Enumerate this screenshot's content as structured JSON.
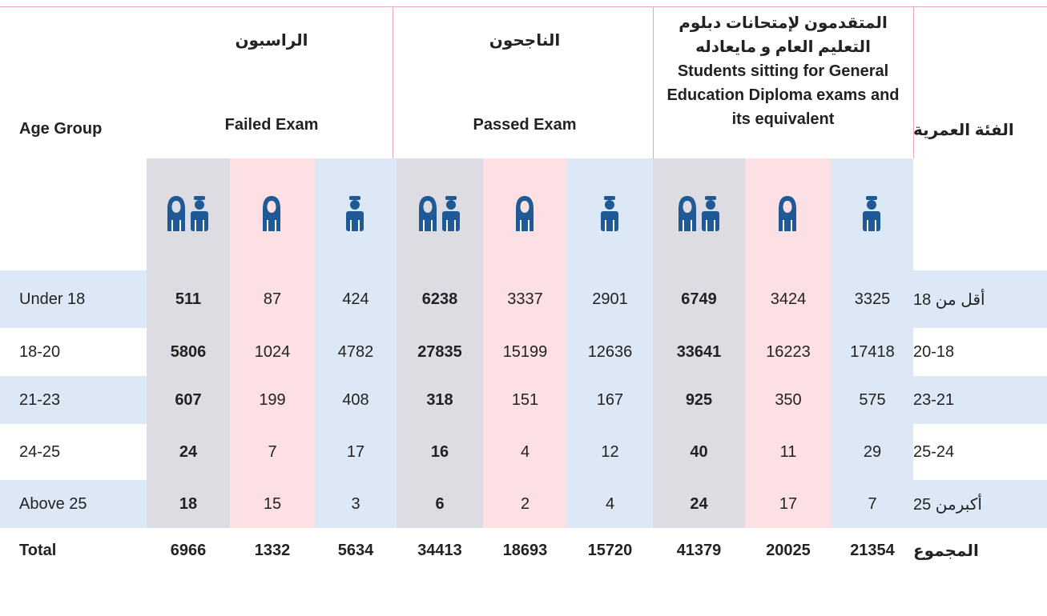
{
  "header": {
    "age_group_en": "Age Group",
    "age_group_ar": "الفئة العمرية",
    "groups": [
      {
        "ar": "الراسبون",
        "en": "Failed Exam"
      },
      {
        "ar": "الناجحون",
        "en": "Passed Exam"
      },
      {
        "ar": "المتقدمون لإمتحانات دبلوم التعليم العام و مايعادله",
        "en": "Students sitting for General Education Diploma exams and its equivalent"
      }
    ]
  },
  "rows": [
    {
      "en": "Under 18",
      "values": [
        511,
        87,
        424,
        6238,
        3337,
        2901,
        6749,
        3424,
        3325
      ],
      "ar": "أقل من 18"
    },
    {
      "en": "18-20",
      "values": [
        5806,
        1024,
        4782,
        27835,
        15199,
        12636,
        33641,
        16223,
        17418
      ],
      "ar": "20-18"
    },
    {
      "en": "21-23",
      "values": [
        607,
        199,
        408,
        318,
        151,
        167,
        925,
        350,
        575
      ],
      "ar": "23-21"
    },
    {
      "en": "24-25",
      "values": [
        24,
        7,
        17,
        16,
        4,
        12,
        40,
        11,
        29
      ],
      "ar": "25-24"
    },
    {
      "en": "Above 25",
      "values": [
        18,
        15,
        3,
        6,
        2,
        4,
        24,
        17,
        7
      ],
      "ar": "أكبرمن 25"
    }
  ],
  "total": {
    "en": "Total",
    "values": [
      6966,
      1332,
      5634,
      34413,
      18693,
      15720,
      41379,
      20025,
      21354
    ],
    "ar": "المجموع"
  }
}
